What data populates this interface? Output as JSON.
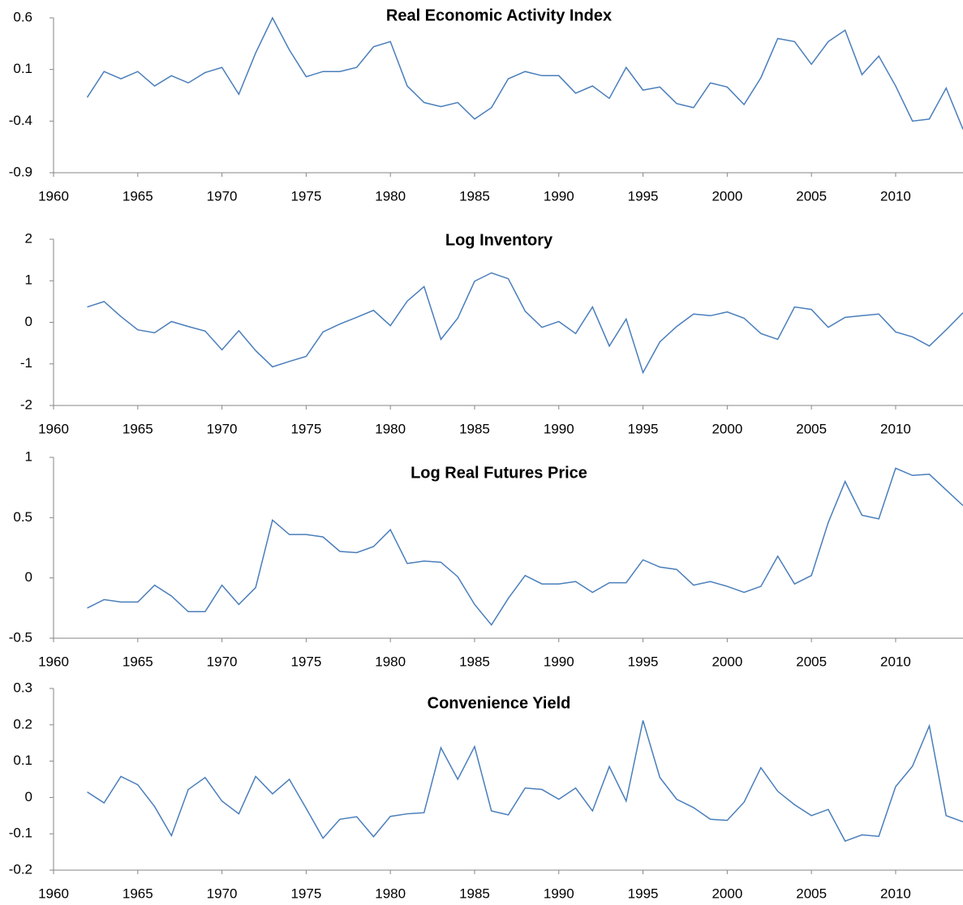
{
  "chart_data": [
    {
      "type": "line",
      "title": "Real Economic Activity Index",
      "x": [
        1962,
        1963,
        1964,
        1965,
        1966,
        1967,
        1968,
        1969,
        1970,
        1971,
        1972,
        1973,
        1974,
        1975,
        1976,
        1977,
        1978,
        1979,
        1980,
        1981,
        1982,
        1983,
        1984,
        1985,
        1986,
        1987,
        1988,
        1989,
        1990,
        1991,
        1992,
        1993,
        1994,
        1995,
        1996,
        1997,
        1998,
        1999,
        2000,
        2001,
        2002,
        2003,
        2004,
        2005,
        2006,
        2007,
        2008,
        2009,
        2010,
        2011,
        2012,
        2013,
        2014
      ],
      "values": [
        -0.17,
        0.08,
        0.01,
        0.08,
        -0.06,
        0.04,
        -0.03,
        0.07,
        0.12,
        -0.14,
        0.26,
        0.6,
        0.29,
        0.03,
        0.08,
        0.08,
        0.12,
        0.32,
        0.37,
        -0.06,
        -0.22,
        -0.26,
        -0.22,
        -0.38,
        -0.27,
        0.01,
        0.08,
        0.04,
        0.04,
        -0.13,
        -0.06,
        -0.18,
        0.12,
        -0.1,
        -0.07,
        -0.23,
        -0.27,
        -0.03,
        -0.07,
        -0.24,
        0.02,
        0.4,
        0.37,
        0.15,
        0.37,
        0.48,
        0.05,
        0.23,
        -0.06,
        -0.4,
        -0.38,
        -0.08,
        -0.48
      ],
      "color": "#4a7ebb",
      "xlim": [
        1960,
        2014
      ],
      "xticks": [
        1960,
        1965,
        1970,
        1975,
        1980,
        1985,
        1990,
        1995,
        2000,
        2005,
        2010
      ],
      "ylim": [
        -0.9,
        0.6
      ],
      "yticks": [
        -0.9,
        -0.4,
        0.1,
        0.6
      ]
    },
    {
      "type": "line",
      "title": "Log Inventory",
      "x": [
        1962,
        1963,
        1964,
        1965,
        1966,
        1967,
        1968,
        1969,
        1970,
        1971,
        1972,
        1973,
        1974,
        1975,
        1976,
        1977,
        1978,
        1979,
        1980,
        1981,
        1982,
        1983,
        1984,
        1985,
        1986,
        1987,
        1988,
        1989,
        1990,
        1991,
        1992,
        1993,
        1994,
        1995,
        1996,
        1997,
        1998,
        1999,
        2000,
        2001,
        2002,
        2003,
        2004,
        2005,
        2006,
        2007,
        2008,
        2009,
        2010,
        2011,
        2012,
        2013,
        2014
      ],
      "values": [
        0.37,
        0.5,
        0.14,
        -0.18,
        -0.25,
        0.02,
        -0.1,
        -0.21,
        -0.66,
        -0.2,
        -0.68,
        -1.07,
        -0.94,
        -0.82,
        -0.23,
        -0.04,
        0.12,
        0.29,
        -0.08,
        0.51,
        0.86,
        -0.41,
        0.1,
        0.99,
        1.19,
        1.05,
        0.27,
        -0.12,
        0.02,
        -0.27,
        0.37,
        -0.57,
        0.08,
        -1.21,
        -0.47,
        -0.1,
        0.2,
        0.16,
        0.25,
        0.1,
        -0.27,
        -0.41,
        0.37,
        0.31,
        -0.12,
        0.12,
        0.16,
        0.2,
        -0.23,
        -0.35,
        -0.57,
        -0.18,
        0.23
      ],
      "color": "#4a7ebb",
      "xlim": [
        1960,
        2014
      ],
      "xticks": [
        1960,
        1965,
        1970,
        1975,
        1980,
        1985,
        1990,
        1995,
        2000,
        2005,
        2010
      ],
      "ylim": [
        -2,
        2
      ],
      "yticks": [
        -2,
        -1,
        0,
        1,
        2
      ]
    },
    {
      "type": "line",
      "title": "Log Real Futures Price",
      "x": [
        1962,
        1963,
        1964,
        1965,
        1966,
        1967,
        1968,
        1969,
        1970,
        1971,
        1972,
        1973,
        1974,
        1975,
        1976,
        1977,
        1978,
        1979,
        1980,
        1981,
        1982,
        1983,
        1984,
        1985,
        1986,
        1987,
        1988,
        1989,
        1990,
        1991,
        1992,
        1993,
        1994,
        1995,
        1996,
        1997,
        1998,
        1999,
        2000,
        2001,
        2002,
        2003,
        2004,
        2005,
        2006,
        2007,
        2008,
        2009,
        2010,
        2011,
        2012,
        2013,
        2014
      ],
      "values": [
        -0.25,
        -0.18,
        -0.2,
        -0.2,
        -0.06,
        -0.15,
        -0.28,
        -0.28,
        -0.06,
        -0.22,
        -0.08,
        0.48,
        0.36,
        0.36,
        0.34,
        0.22,
        0.21,
        0.26,
        0.4,
        0.12,
        0.14,
        0.13,
        0.01,
        -0.22,
        -0.39,
        -0.17,
        0.02,
        -0.05,
        -0.05,
        -0.03,
        -0.12,
        -0.04,
        -0.04,
        0.15,
        0.09,
        0.07,
        -0.06,
        -0.03,
        -0.07,
        -0.12,
        -0.07,
        0.18,
        -0.05,
        0.02,
        0.46,
        0.8,
        0.52,
        0.49,
        0.91,
        0.85,
        0.86,
        0.73,
        0.6
      ],
      "color": "#4a7ebb",
      "xlim": [
        1960,
        2014
      ],
      "xticks": [
        1960,
        1965,
        1970,
        1975,
        1980,
        1985,
        1990,
        1995,
        2000,
        2005,
        2010
      ],
      "ylim": [
        -0.5,
        1
      ],
      "yticks": [
        -0.5,
        0,
        0.5,
        1
      ]
    },
    {
      "type": "line",
      "title": "Convenience Yield",
      "x": [
        1962,
        1963,
        1964,
        1965,
        1966,
        1967,
        1968,
        1969,
        1970,
        1971,
        1972,
        1973,
        1974,
        1975,
        1976,
        1977,
        1978,
        1979,
        1980,
        1981,
        1982,
        1983,
        1984,
        1985,
        1986,
        1987,
        1988,
        1989,
        1990,
        1991,
        1992,
        1993,
        1994,
        1995,
        1996,
        1997,
        1998,
        1999,
        2000,
        2001,
        2002,
        2003,
        2004,
        2005,
        2006,
        2007,
        2008,
        2009,
        2010,
        2011,
        2012,
        2013,
        2014
      ],
      "values": [
        0.015,
        -0.015,
        0.058,
        0.035,
        -0.025,
        -0.105,
        0.022,
        0.055,
        -0.01,
        -0.045,
        0.058,
        0.01,
        0.05,
        -0.03,
        -0.112,
        -0.06,
        -0.053,
        -0.108,
        -0.052,
        -0.045,
        -0.042,
        0.137,
        0.05,
        0.14,
        -0.037,
        -0.048,
        0.026,
        0.022,
        -0.005,
        0.026,
        -0.037,
        0.085,
        -0.01,
        0.212,
        0.055,
        -0.005,
        -0.028,
        -0.06,
        -0.063,
        -0.013,
        0.082,
        0.017,
        -0.02,
        -0.05,
        -0.033,
        -0.12,
        -0.103,
        -0.107,
        0.03,
        0.086,
        0.197,
        -0.05,
        -0.067
      ],
      "color": "#4a7ebb",
      "xlim": [
        1960,
        2014
      ],
      "xticks": [
        1960,
        1965,
        1970,
        1975,
        1980,
        1985,
        1990,
        1995,
        2000,
        2005,
        2010
      ],
      "ylim": [
        -0.2,
        0.3
      ],
      "yticks": [
        -0.2,
        -0.1,
        0,
        0.1,
        0.2,
        0.3
      ]
    }
  ]
}
